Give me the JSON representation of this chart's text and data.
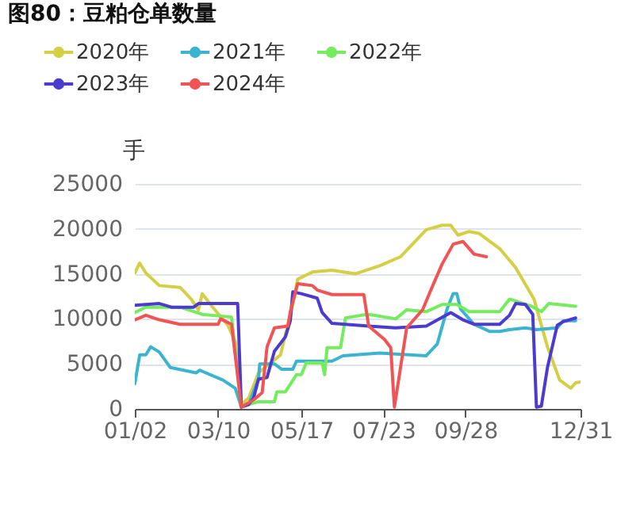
{
  "chart_data": {
    "type": "line",
    "title": "图80：豆粕仓单数量",
    "ylabel": "手",
    "xlim": [
      "--01-02",
      "--12-31"
    ],
    "xticks": [
      {
        "value": "--01-02",
        "label": "01/02"
      },
      {
        "value": "--03-10",
        "label": "03/10"
      },
      {
        "value": "--05-17",
        "label": "05/17"
      },
      {
        "value": "--07-23",
        "label": "07/23"
      },
      {
        "value": "--09-28",
        "label": "09/28"
      },
      {
        "value": "--12-31",
        "label": "12/31"
      }
    ],
    "ylim": [
      0,
      25000
    ],
    "yticks": [
      0,
      5000,
      10000,
      15000,
      20000,
      25000
    ],
    "grid": "y",
    "legend": "top",
    "line_style": "solid",
    "series": [
      {
        "name": "2020年",
        "color": "#d4cf45",
        "x": [
          "--01-02",
          "--01-06",
          "--01-11",
          "--01-22",
          "--02-08",
          "--02-17",
          "--02-23",
          "--02-26",
          "--03-05",
          "--03-18",
          "--03-24",
          "--03-29",
          "--04-04",
          "--04-12",
          "--04-30",
          "--05-10",
          "--05-14",
          "--05-26",
          "--06-11",
          "--06-30",
          "--07-20",
          "--08-06",
          "--08-27",
          "--09-09",
          "--09-16",
          "--09-22",
          "--10-01",
          "--10-09",
          "--10-26",
          "--11-08",
          "--11-23",
          "--12-04",
          "--12-14",
          "--12-23",
          "--12-27",
          "--12-31"
        ],
        "values": [
          15100,
          16200,
          15100,
          13700,
          13500,
          12200,
          11000,
          12800,
          11400,
          9300,
          7500,
          500,
          1200,
          4000,
          6000,
          11600,
          14400,
          15200,
          15400,
          15000,
          15900,
          16900,
          19900,
          20400,
          20400,
          19300,
          19700,
          19500,
          17800,
          15700,
          12200,
          6900,
          3200,
          2300,
          2900,
          3000
        ]
      },
      {
        "name": "2021年",
        "color": "#3cb4d0",
        "x": [
          "--01-02",
          "--01-06",
          "--01-11",
          "--01-15",
          "--01-22",
          "--01-31",
          "--02-21",
          "--02-24",
          "--03-14",
          "--03-24",
          "--03-29",
          "--04-04",
          "--04-12",
          "--04-13",
          "--04-25",
          "--05-01",
          "--05-10",
          "--05-13",
          "--06-11",
          "--06-20",
          "--07-20",
          "--08-27",
          "--09-05",
          "--09-13",
          "--09-18",
          "--09-21",
          "--09-24",
          "--10-05",
          "--10-18",
          "--10-26",
          "--11-03",
          "--11-16",
          "--11-25",
          "--12-12",
          "--12-17",
          "--12-27"
        ],
        "values": [
          2800,
          6000,
          6000,
          6900,
          6300,
          4600,
          4000,
          4300,
          3200,
          2300,
          200,
          500,
          3300,
          5000,
          5000,
          4400,
          4400,
          5300,
          5300,
          5900,
          6200,
          5900,
          7200,
          11100,
          12800,
          12800,
          11100,
          9400,
          8600,
          8600,
          8800,
          9000,
          8800,
          9000,
          9800,
          9800
        ]
      },
      {
        "name": "2022年",
        "color": "#74ec5e",
        "x": [
          "--01-02",
          "--01-11",
          "--02-08",
          "--02-26",
          "--03-21",
          "--03-29",
          "--04-04",
          "--04-12",
          "--04-25",
          "--04-27",
          "--05-04",
          "--05-13",
          "--05-17",
          "--05-21",
          "--06-03",
          "--06-05",
          "--06-07",
          "--06-18",
          "--06-22",
          "--07-05",
          "--07-11",
          "--08-02",
          "--08-11",
          "--08-27",
          "--09-09",
          "--09-21",
          "--10-01",
          "--10-26",
          "--11-03",
          "--11-21",
          "--11-29",
          "--12-05",
          "--12-27"
        ],
        "values": [
          10700,
          11300,
          11300,
          10500,
          10200,
          200,
          500,
          800,
          800,
          1900,
          1900,
          3800,
          3800,
          5100,
          5100,
          3800,
          6800,
          6800,
          10100,
          10400,
          10500,
          10000,
          11000,
          10800,
          11600,
          11600,
          10800,
          10800,
          12200,
          11400,
          10800,
          11700,
          11400
        ]
      },
      {
        "name": "2023年",
        "color": "#4b3ccf",
        "x": [
          "--01-02",
          "--01-22",
          "--02-01",
          "--02-19",
          "--02-23",
          "--03-26",
          "--03-29",
          "--04-04",
          "--04-08",
          "--04-12",
          "--04-19",
          "--04-25",
          "--05-04",
          "--05-08",
          "--05-10",
          "--05-17",
          "--05-30",
          "--06-03",
          "--06-11",
          "--07-11",
          "--08-02",
          "--08-27",
          "--09-16",
          "--09-26",
          "--10-05",
          "--10-26",
          "--11-03",
          "--11-08",
          "--11-16",
          "--11-22",
          "--11-25",
          "--11-29",
          "--12-04",
          "--12-12",
          "--12-17",
          "--12-27"
        ],
        "values": [
          11500,
          11700,
          11300,
          11300,
          11700,
          11700,
          200,
          500,
          1200,
          3300,
          3500,
          6400,
          8000,
          9800,
          13000,
          12800,
          12300,
          10700,
          9500,
          9200,
          9000,
          9200,
          10700,
          9900,
          9400,
          9400,
          10400,
          11700,
          11600,
          10500,
          200,
          300,
          4600,
          9300,
          9700,
          10100
        ]
      },
      {
        "name": "2024年",
        "color": "#f05454",
        "x": [
          "--01-02",
          "--01-11",
          "--01-22",
          "--02-08",
          "--03-10",
          "--03-12",
          "--03-21",
          "--03-29",
          "--04-08",
          "--04-15",
          "--04-19",
          "--04-25",
          "--05-06",
          "--05-08",
          "--05-14",
          "--05-26",
          "--05-30",
          "--06-11",
          "--07-07",
          "--07-11",
          "--07-24",
          "--07-29",
          "--08-01",
          "--08-06",
          "--08-11",
          "--08-24",
          "--09-01",
          "--09-09",
          "--09-18",
          "--09-26",
          "--10-05",
          "--10-15"
        ],
        "values": [
          9900,
          10400,
          9900,
          9400,
          9400,
          10000,
          9400,
          200,
          1000,
          1800,
          6900,
          9000,
          9200,
          10800,
          13900,
          13700,
          13200,
          12700,
          12700,
          9200,
          7700,
          6800,
          200,
          4600,
          9000,
          11000,
          13600,
          16100,
          18300,
          18600,
          17200,
          16900
        ]
      }
    ]
  }
}
